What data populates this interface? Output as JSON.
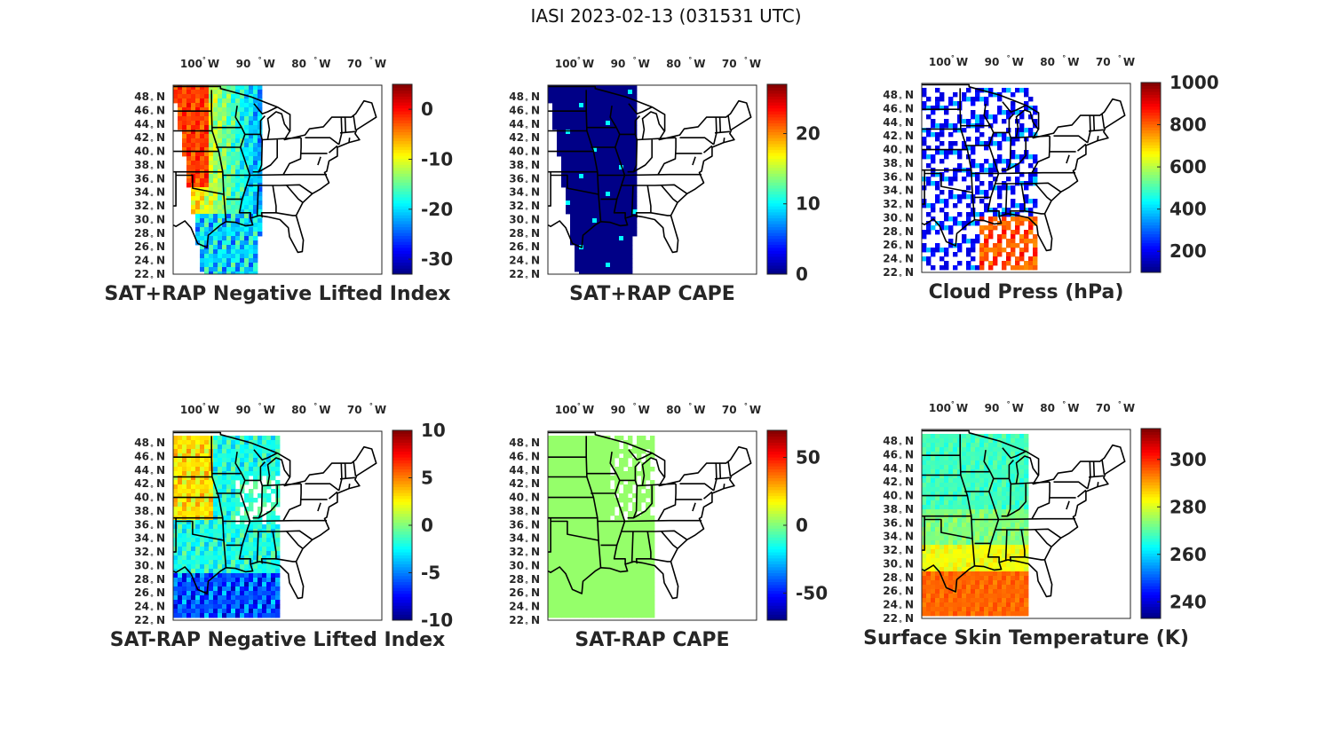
{
  "title": "IASI 2023-02-13 (031531 UTC)",
  "map_axes": {
    "lon_ticks": [
      {
        "deg": "100",
        "hemi": "W"
      },
      {
        "deg": "90",
        "hemi": "W"
      },
      {
        "deg": "80",
        "hemi": "W"
      },
      {
        "deg": "70",
        "hemi": "W"
      }
    ],
    "lat_ticks": [
      "48",
      "46",
      "44",
      "42",
      "40",
      "38",
      "36",
      "34",
      "32",
      "30",
      "28",
      "26",
      "24",
      "22"
    ],
    "lat_hemi": "N",
    "degree_symbol": "°"
  },
  "colormap": "jet",
  "chart_data": [
    {
      "type": "heatmap",
      "title": "SAT+RAP Negative Lifted Index",
      "colorbar": {
        "range": [
          -33,
          5
        ],
        "ticks": [
          0,
          -10,
          -20,
          -30
        ]
      },
      "typical_value": -10
    },
    {
      "type": "heatmap",
      "title": "SAT+RAP CAPE",
      "colorbar": {
        "range": [
          0,
          27
        ],
        "ticks": [
          20,
          10,
          0
        ]
      },
      "typical_value": 0
    },
    {
      "type": "heatmap",
      "title": "Cloud Press (hPa)",
      "colorbar": {
        "range": [
          100,
          1000
        ],
        "ticks": [
          1000,
          800,
          600,
          400,
          200
        ]
      },
      "typical_value": 200
    },
    {
      "type": "heatmap",
      "title": "SAT-RAP Negative Lifted Index",
      "colorbar": {
        "range": [
          -10,
          10
        ],
        "ticks": [
          10,
          5,
          0,
          -5,
          -10
        ]
      },
      "typical_value": 0
    },
    {
      "type": "heatmap",
      "title": "SAT-RAP CAPE",
      "colorbar": {
        "range": [
          -70,
          70
        ],
        "ticks": [
          50,
          0,
          -50
        ]
      },
      "typical_value": 0
    },
    {
      "type": "heatmap",
      "title": "Surface Skin Temperature (K)",
      "colorbar": {
        "range": [
          233,
          313
        ],
        "ticks": [
          300,
          280,
          260,
          240
        ]
      },
      "typical_value": 270
    }
  ]
}
